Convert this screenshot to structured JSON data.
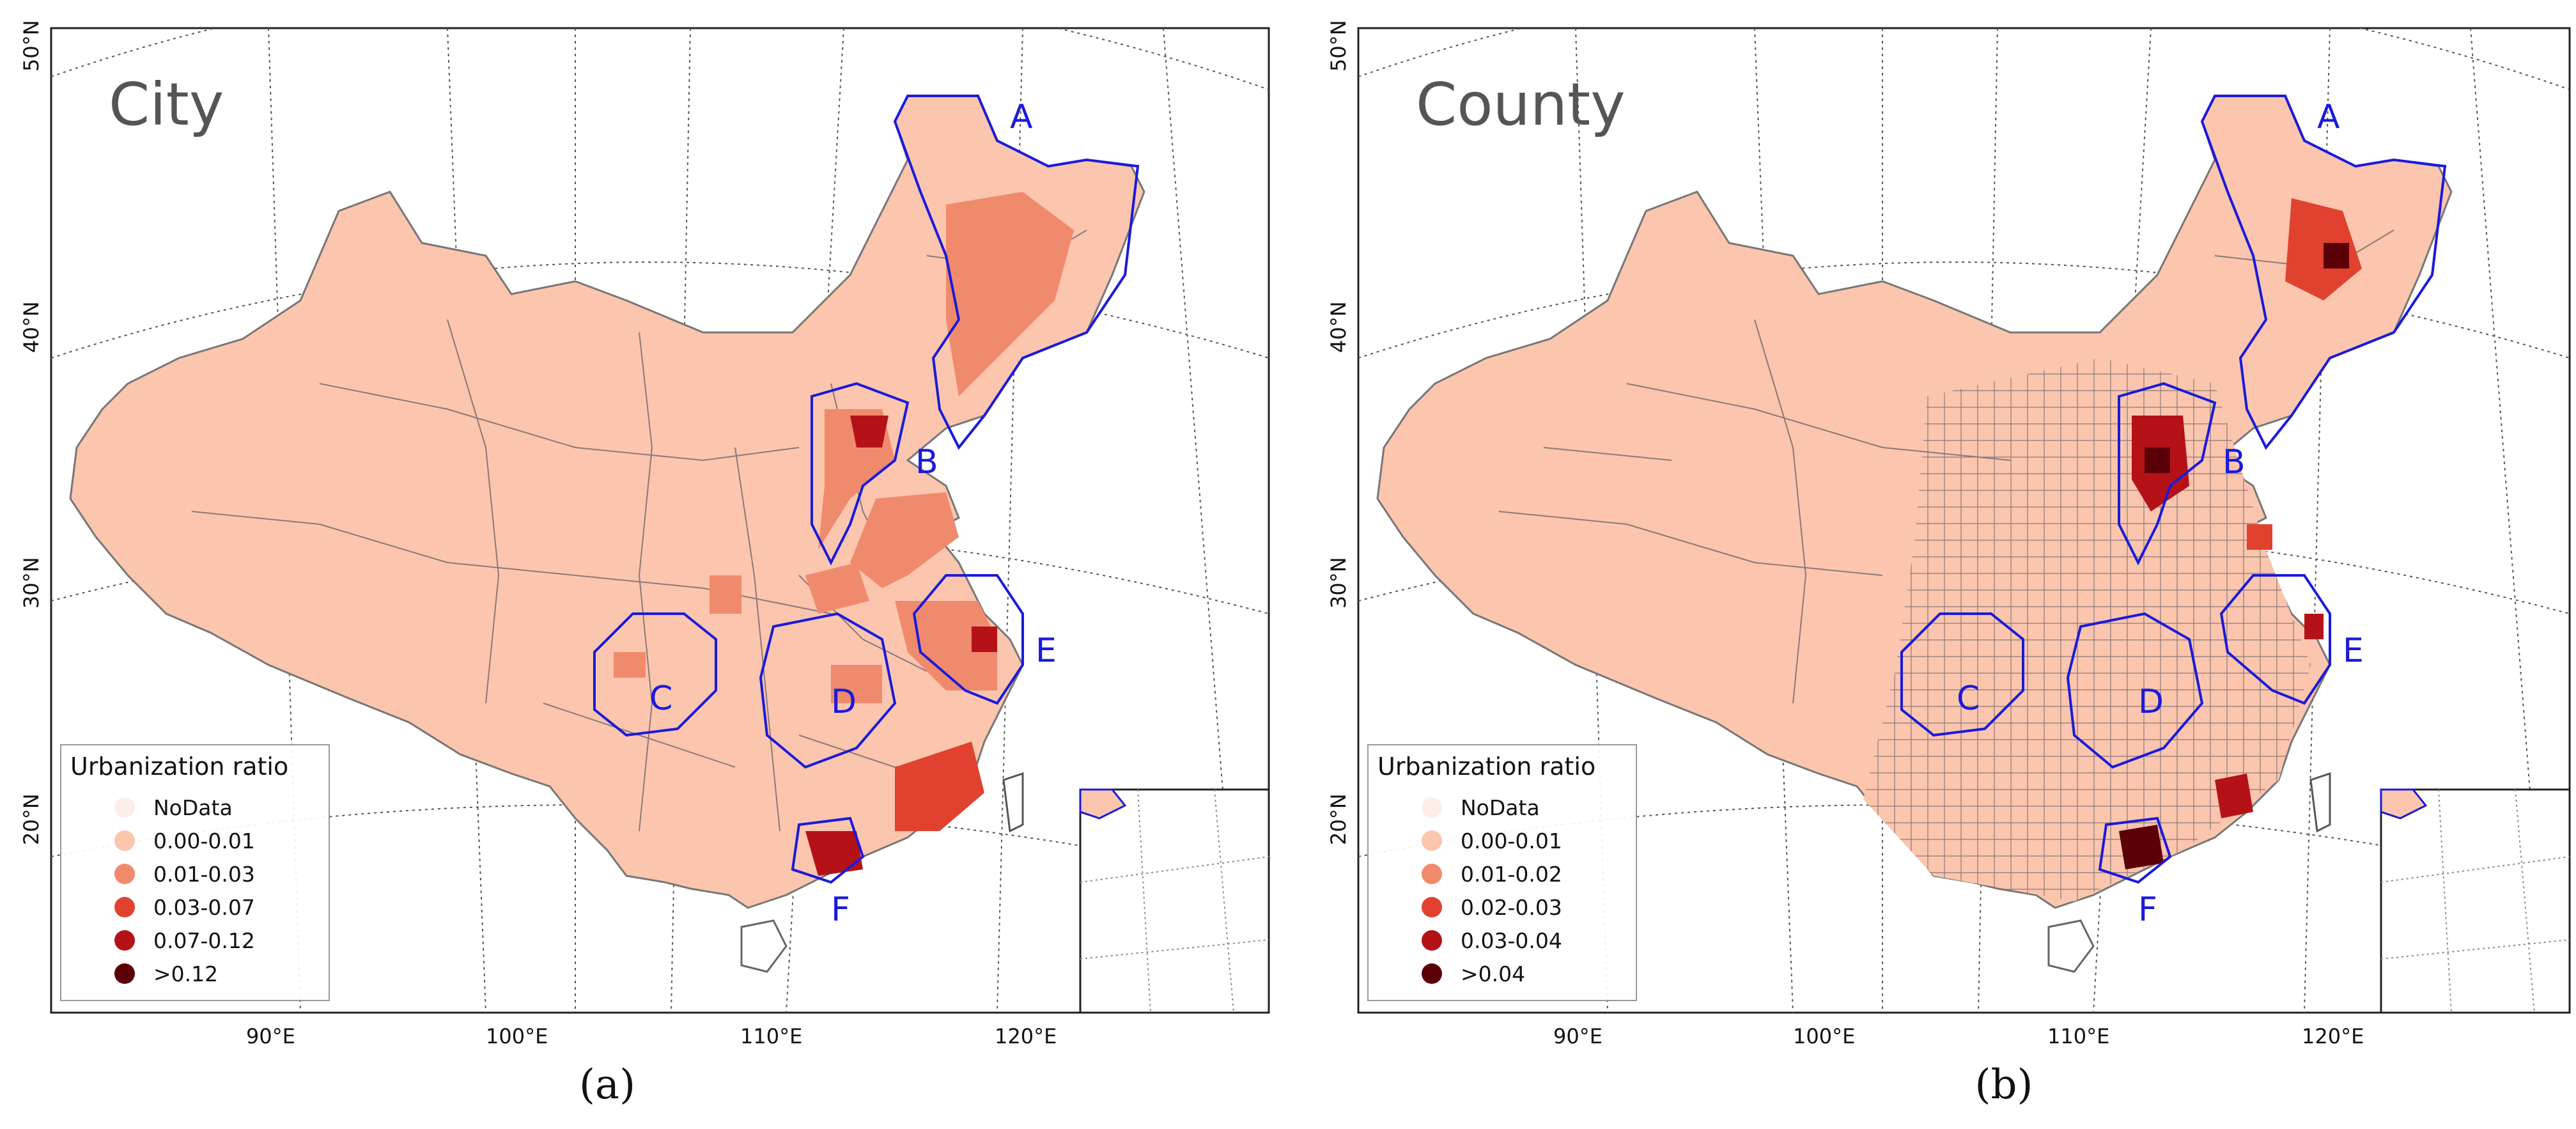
{
  "panels": [
    {
      "title": "City",
      "caption": "(a)",
      "legend": {
        "title": "Urbanization ratio",
        "items": [
          {
            "label": "NoData",
            "color": "#fdeeea"
          },
          {
            "label": "0.00-0.01",
            "color": "#fbc5ae"
          },
          {
            "label": "0.01-0.03",
            "color": "#f08a6c"
          },
          {
            "label": "0.03-0.07",
            "color": "#e0422f"
          },
          {
            "label": "0.07-0.12",
            "color": "#b51218"
          },
          {
            "label": ">0.12",
            "color": "#5c0008"
          }
        ]
      }
    },
    {
      "title": "County",
      "caption": "(b)",
      "legend": {
        "title": "Urbanization ratio",
        "items": [
          {
            "label": "NoData",
            "color": "#fdeeea"
          },
          {
            "label": "0.00-0.01",
            "color": "#fbc5ae"
          },
          {
            "label": "0.01-0.02",
            "color": "#f08a6c"
          },
          {
            "label": "0.02-0.03",
            "color": "#e0422f"
          },
          {
            "label": "0.03-0.04",
            "color": "#b51218"
          },
          {
            "label": ">0.04",
            "color": "#5c0008"
          }
        ]
      }
    }
  ],
  "longitude_labels": [
    "90°E",
    "100°E",
    "110°E",
    "120°E"
  ],
  "latitude_labels": [
    "50°N",
    "40°N",
    "30°N",
    "20°N"
  ],
  "region_labels": [
    "A",
    "B",
    "C",
    "D",
    "E",
    "F"
  ],
  "colors": {
    "base_fill": "#fbc5ae",
    "region_outline": "#1a1adb",
    "graticule": "#555555",
    "frame": "#222222"
  }
}
